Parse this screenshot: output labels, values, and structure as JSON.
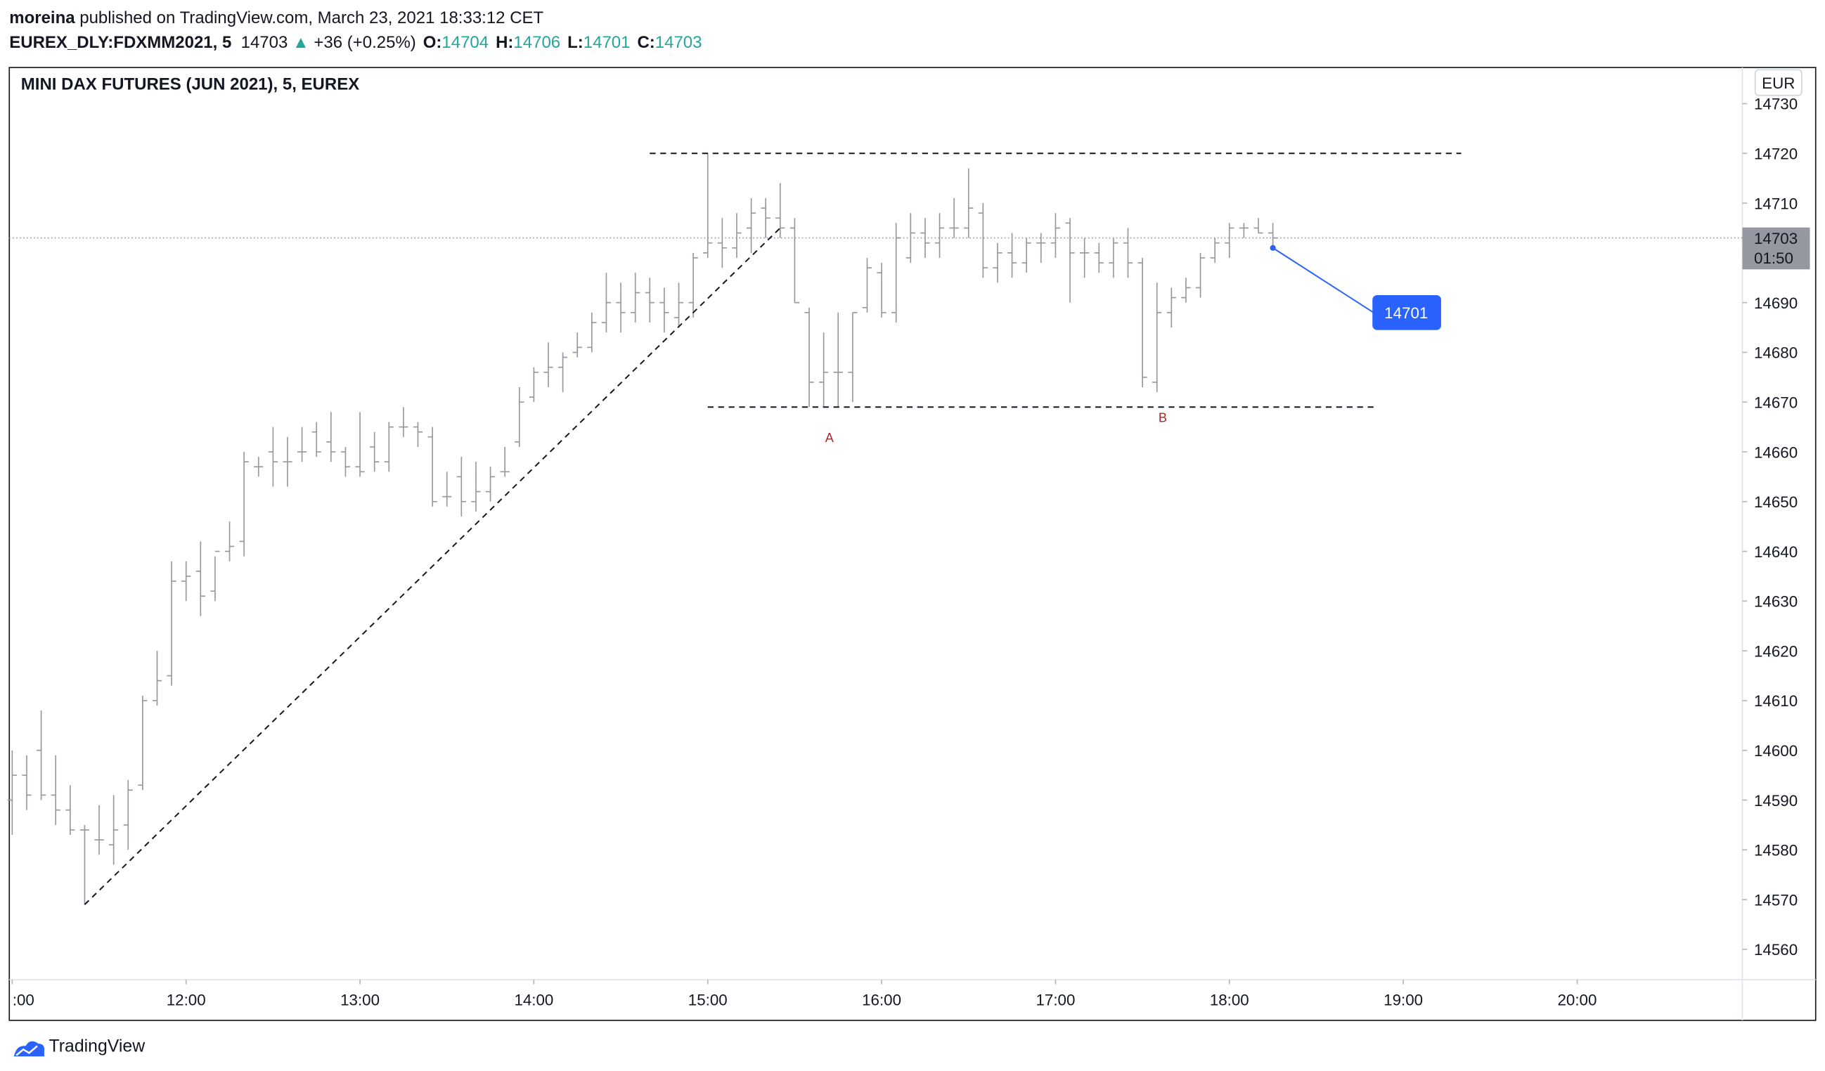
{
  "header": {
    "author": "moreina",
    "published": "published on TradingView.com, March 23, 2021 18:33:12 CET",
    "symbol": "EUREX_DLY:FDXMM2021, 5",
    "price": "14703",
    "arrow": "▲",
    "change": "+36 (+0.25%)",
    "open_label": "O:",
    "open": "14704",
    "high_label": "H:",
    "high": "14706",
    "low_label": "L:",
    "low": "14701",
    "close_label": "C:",
    "close": "14703"
  },
  "footer": {
    "brand": "TradingView"
  },
  "chart_data": {
    "type": "ohlc",
    "title": "MINI DAX FUTURES (JUN 2021), 5, EUREX",
    "currency": "EUR",
    "color": "#9598a1",
    "x": [
      "11:00",
      "11:05",
      "11:10",
      "11:15",
      "11:20",
      "11:25",
      "11:30",
      "11:35",
      "11:40",
      "11:45",
      "11:50",
      "11:55",
      "12:00",
      "12:05",
      "12:10",
      "12:15",
      "12:20",
      "12:25",
      "12:30",
      "12:35",
      "12:40",
      "12:45",
      "12:50",
      "12:55",
      "13:00",
      "13:05",
      "13:10",
      "13:15",
      "13:20",
      "13:25",
      "13:30",
      "13:35",
      "13:40",
      "13:45",
      "13:50",
      "13:55",
      "14:00",
      "14:05",
      "14:10",
      "14:15",
      "14:20",
      "14:25",
      "14:30",
      "14:35",
      "14:40",
      "14:45",
      "14:50",
      "14:55",
      "15:00",
      "15:05",
      "15:10",
      "15:15",
      "15:20",
      "15:25",
      "15:30",
      "15:35",
      "15:40",
      "15:45",
      "15:50",
      "15:55",
      "16:00",
      "16:05",
      "16:10",
      "16:15",
      "16:20",
      "16:25",
      "16:30",
      "16:35",
      "16:40",
      "16:45",
      "16:50",
      "16:55",
      "17:00",
      "17:05",
      "17:10",
      "17:15",
      "17:20",
      "17:25",
      "17:30",
      "17:35",
      "17:40",
      "17:45",
      "17:50",
      "17:55",
      "18:00",
      "18:05",
      "18:10",
      "18:15"
    ],
    "open": [
      14590,
      14595,
      14600,
      14591,
      14588,
      14584,
      14582,
      14581,
      14585,
      14593,
      14610,
      14615,
      14634,
      14636,
      14632,
      14640,
      14642,
      14657,
      14660,
      14658,
      14660,
      14664,
      14662,
      14660,
      14657,
      14661,
      14658,
      14665,
      14665,
      14663,
      14651,
      14655,
      14650,
      14652,
      14656,
      14662,
      14671,
      14676,
      14677,
      14680,
      14681,
      14686,
      14690,
      14688,
      14692,
      14690,
      14687,
      14690,
      14700,
      14702,
      14701,
      14705,
      14709,
      14707,
      14705,
      14688,
      14674,
      14676,
      14676,
      14689,
      14696,
      14688,
      14699,
      14704,
      14702,
      14705,
      14705,
      14708,
      14697,
      14700,
      14698,
      14702,
      14702,
      14706,
      14700,
      14700,
      14698,
      14702,
      14698,
      14674,
      14688,
      14691,
      14693,
      14699,
      14702,
      14705,
      14705,
      14704
    ],
    "high": [
      14600,
      14599,
      14608,
      14599,
      14593,
      14585,
      14589,
      14591,
      14594,
      14611,
      14620,
      14638,
      14638,
      14642,
      14639,
      14646,
      14660,
      14659,
      14665,
      14663,
      14665,
      14666,
      14668,
      14661,
      14668,
      14664,
      14666,
      14669,
      14666,
      14665,
      14656,
      14659,
      14658,
      14657,
      14661,
      14673,
      14677,
      14682,
      14680,
      14684,
      14688,
      14696,
      14694,
      14696,
      14695,
      14693,
      14694,
      14700,
      14720,
      14707,
      14708,
      14711,
      14711,
      14714,
      14707,
      14689,
      14684,
      14688,
      14688,
      14699,
      14698,
      14706,
      14708,
      14707,
      14708,
      14711,
      14717,
      14710,
      14702,
      14704,
      14703,
      14704,
      14708,
      14707,
      14703,
      14702,
      14703,
      14705,
      14699,
      14694,
      14693,
      14695,
      14700,
      14703,
      14706,
      14706,
      14707,
      14706
    ],
    "low": [
      14583,
      14588,
      14590,
      14585,
      14583,
      14569,
      14579,
      14577,
      14580,
      14592,
      14609,
      14613,
      14630,
      14627,
      14630,
      14638,
      14639,
      14655,
      14653,
      14653,
      14658,
      14659,
      14658,
      14655,
      14655,
      14656,
      14656,
      14663,
      14661,
      14649,
      14649,
      14647,
      14648,
      14650,
      14655,
      14661,
      14670,
      14673,
      14672,
      14679,
      14680,
      14684,
      14684,
      14686,
      14686,
      14684,
      14685,
      14687,
      14699,
      14697,
      14699,
      14700,
      14703,
      14703,
      14690,
      14669,
      14669,
      14669,
      14670,
      14688,
      14687,
      14686,
      14698,
      14699,
      14699,
      14703,
      14703,
      14695,
      14694,
      14695,
      14696,
      14698,
      14699,
      14690,
      14695,
      14696,
      14695,
      14695,
      14673,
      14672,
      14685,
      14690,
      14691,
      14698,
      14699,
      14703,
      14704,
      14701
    ],
    "close": [
      14595,
      14591,
      14591,
      14588,
      14584,
      14584,
      14582,
      14584,
      14592,
      14610,
      14614,
      14634,
      14635,
      14631,
      14640,
      14641,
      14658,
      14657,
      14658,
      14658,
      14660,
      14660,
      14660,
      14657,
      14656,
      14658,
      14665,
      14665,
      14664,
      14650,
      14651,
      14650,
      14652,
      14655,
      14656,
      14670,
      14676,
      14677,
      14679,
      14681,
      14686,
      14690,
      14688,
      14692,
      14690,
      14688,
      14690,
      14699,
      14702,
      14701,
      14704,
      14708,
      14707,
      14705,
      14690,
      14674,
      14676,
      14676,
      14688,
      14697,
      14688,
      14703,
      14704,
      14702,
      14705,
      14705,
      14709,
      14697,
      14700,
      14698,
      14702,
      14702,
      14705,
      14700,
      14700,
      14698,
      14702,
      14698,
      14675,
      14688,
      14691,
      14693,
      14699,
      14702,
      14705,
      14705,
      14704,
      14703
    ],
    "xlim": [
      "10:59",
      "20:57"
    ],
    "xticks": [
      {
        "value": "11:00",
        "label": ":00"
      },
      "12:00",
      "13:00",
      "14:00",
      "15:00",
      "16:00",
      "17:00",
      "18:00",
      "19:00",
      "20:00"
    ],
    "ylim": [
      14553.9,
      14736.8
    ],
    "yticks": [
      14560,
      14570,
      14580,
      14590,
      14600,
      14610,
      14620,
      14630,
      14640,
      14650,
      14660,
      14670,
      14680,
      14690,
      14700,
      14710,
      14720,
      14730
    ],
    "last_price": 14703,
    "countdown": "01:50",
    "lines": [
      {
        "x": [
          "11:25",
          "15:25"
        ],
        "y": [
          14569,
          14705
        ]
      },
      {
        "x": [
          "14:40",
          "19:20"
        ],
        "y": [
          14720,
          14720
        ]
      },
      {
        "x": [
          "15:00",
          "18:50"
        ],
        "y": [
          14669,
          14669
        ]
      }
    ],
    "annotations": [
      {
        "text": "A",
        "x": "15:42",
        "y": 14662
      },
      {
        "text": "B",
        "x": "17:37",
        "y": 14666
      }
    ],
    "callout": {
      "text": "14701",
      "x": "18:15",
      "y": 14701,
      "label_x": "19:01",
      "label_y": 14688
    }
  }
}
